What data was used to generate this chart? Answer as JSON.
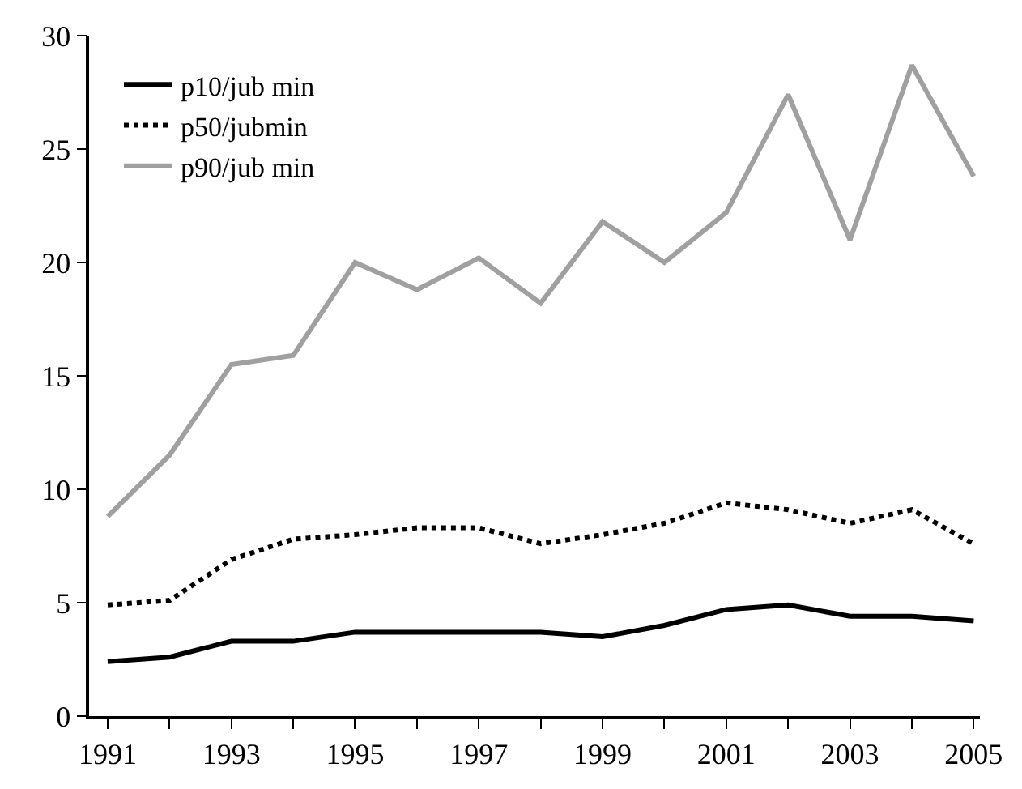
{
  "chart_data": {
    "type": "line",
    "x": [
      1991,
      1992,
      1993,
      1994,
      1995,
      1996,
      1997,
      1998,
      1999,
      2000,
      2001,
      2002,
      2003,
      2004,
      2005
    ],
    "series": [
      {
        "name": "p10/jub min",
        "color": "#000000",
        "line_style": "solid",
        "values": [
          2.4,
          2.6,
          3.3,
          3.3,
          3.7,
          3.7,
          3.7,
          3.7,
          3.5,
          4.0,
          4.7,
          4.9,
          4.4,
          4.4,
          4.2
        ]
      },
      {
        "name": "p50/jubmin",
        "color": "#000000",
        "line_style": "dotted",
        "values": [
          4.9,
          5.1,
          6.9,
          7.8,
          8.0,
          8.3,
          8.3,
          7.6,
          8.0,
          8.5,
          9.4,
          9.1,
          8.5,
          9.1,
          7.6
        ]
      },
      {
        "name": "p90/jub min",
        "color": "#a0a0a0",
        "line_style": "solid",
        "values": [
          8.8,
          11.5,
          15.5,
          15.9,
          20.0,
          18.8,
          20.2,
          18.2,
          21.8,
          20.0,
          22.2,
          27.4,
          21.0,
          28.7,
          23.8
        ]
      }
    ],
    "xlim": [
      1990.7,
      2005.1
    ],
    "xticks": [
      1991,
      {
        "value": 1992,
        "label": null
      },
      1993,
      {
        "value": 1994,
        "label": null
      },
      1995,
      {
        "value": 1996,
        "label": null
      },
      1997,
      {
        "value": 1998,
        "label": null
      },
      1999,
      {
        "value": 2000,
        "label": null
      },
      2001,
      {
        "value": 2002,
        "label": null
      },
      2003,
      {
        "value": 2004,
        "label": null
      },
      2005
    ],
    "ylim": [
      0,
      30
    ],
    "yticks": [
      0,
      5,
      10,
      15,
      20,
      25,
      30
    ],
    "legend": "top left",
    "marker": "none"
  }
}
